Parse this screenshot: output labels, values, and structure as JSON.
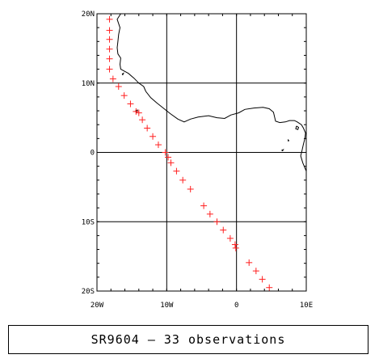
{
  "map": {
    "extent": {
      "lon": [
        -20,
        10
      ],
      "lat": [
        -20,
        20
      ]
    },
    "grid_interval_deg": 10,
    "lat_labels": [
      {
        "text": "20N",
        "lat": 20
      },
      {
        "text": "10N",
        "lat": 10
      },
      {
        "text": "0",
        "lat": 0
      },
      {
        "text": "10S",
        "lat": -10
      },
      {
        "text": "20S",
        "lat": -20
      }
    ],
    "lon_labels": [
      {
        "text": "20W",
        "lon": -20
      },
      {
        "text": "10W",
        "lon": -10
      },
      {
        "text": "0",
        "lon": 0
      },
      {
        "text": "10E",
        "lon": 10
      }
    ],
    "marker": "+",
    "marker_color": "#ff2020",
    "coastline_color": "#000000",
    "observations": [
      {
        "lon": -18.2,
        "lat": 19.2
      },
      {
        "lon": -18.2,
        "lat": 17.6
      },
      {
        "lon": -18.2,
        "lat": 16.3
      },
      {
        "lon": -18.2,
        "lat": 14.9
      },
      {
        "lon": -18.2,
        "lat": 13.5
      },
      {
        "lon": -18.2,
        "lat": 12.0
      },
      {
        "lon": -17.7,
        "lat": 10.6
      },
      {
        "lon": -16.9,
        "lat": 9.5
      },
      {
        "lon": -16.1,
        "lat": 8.2
      },
      {
        "lon": -15.2,
        "lat": 7.0
      },
      {
        "lon": -14.4,
        "lat": 5.9
      },
      {
        "lon": -14.0,
        "lat": 5.7
      },
      {
        "lon": -13.5,
        "lat": 4.7
      },
      {
        "lon": -12.8,
        "lat": 3.5
      },
      {
        "lon": -12.0,
        "lat": 2.3
      },
      {
        "lon": -11.2,
        "lat": 1.1
      },
      {
        "lon": -10.2,
        "lat": 0.0
      },
      {
        "lon": -9.8,
        "lat": -0.7
      },
      {
        "lon": -9.4,
        "lat": -1.5
      },
      {
        "lon": -8.6,
        "lat": -2.7
      },
      {
        "lon": -7.7,
        "lat": -4.0
      },
      {
        "lon": -6.6,
        "lat": -5.3
      },
      {
        "lon": -4.7,
        "lat": -7.7
      },
      {
        "lon": -3.8,
        "lat": -8.9
      },
      {
        "lon": -2.8,
        "lat": -10.0
      },
      {
        "lon": -1.9,
        "lat": -11.2
      },
      {
        "lon": -0.9,
        "lat": -12.4
      },
      {
        "lon": -0.2,
        "lat": -13.3
      },
      {
        "lon": -0.1,
        "lat": -13.8
      },
      {
        "lon": 1.8,
        "lat": -15.9
      },
      {
        "lon": 2.8,
        "lat": -17.1
      },
      {
        "lon": 3.7,
        "lat": -18.3
      },
      {
        "lon": 4.7,
        "lat": -19.5
      }
    ],
    "coastline": [
      [
        -16.6,
        20.0
      ],
      [
        -17.1,
        19.2
      ],
      [
        -16.7,
        18.0
      ],
      [
        -16.9,
        17.0
      ],
      [
        -17.0,
        16.0
      ],
      [
        -17.1,
        15.1
      ],
      [
        -17.0,
        14.2
      ],
      [
        -16.6,
        13.6
      ],
      [
        -16.7,
        12.7
      ],
      [
        -16.6,
        12.0
      ],
      [
        -15.5,
        11.4
      ],
      [
        -14.7,
        10.7
      ],
      [
        -14.0,
        10.0
      ],
      [
        -13.3,
        9.5
      ],
      [
        -13.0,
        8.8
      ],
      [
        -12.3,
        7.9
      ],
      [
        -11.5,
        7.2
      ],
      [
        -10.5,
        6.4
      ],
      [
        -9.5,
        5.6
      ],
      [
        -8.4,
        4.8
      ],
      [
        -7.5,
        4.4
      ],
      [
        -6.6,
        4.8
      ],
      [
        -5.5,
        5.1
      ],
      [
        -4.0,
        5.3
      ],
      [
        -2.8,
        5.0
      ],
      [
        -1.7,
        4.9
      ],
      [
        -0.8,
        5.4
      ],
      [
        0.3,
        5.7
      ],
      [
        1.2,
        6.2
      ],
      [
        2.5,
        6.4
      ],
      [
        3.8,
        6.5
      ],
      [
        4.7,
        6.3
      ],
      [
        5.3,
        5.8
      ],
      [
        5.6,
        4.5
      ],
      [
        6.2,
        4.3
      ],
      [
        7.0,
        4.4
      ],
      [
        7.6,
        4.6
      ],
      [
        8.3,
        4.6
      ],
      [
        8.7,
        4.4
      ],
      [
        9.3,
        4.0
      ],
      [
        9.6,
        3.5
      ],
      [
        9.9,
        2.8
      ],
      [
        9.8,
        2.0
      ],
      [
        9.6,
        1.2
      ],
      [
        9.4,
        0.3
      ],
      [
        9.2,
        -0.5
      ],
      [
        9.5,
        -1.5
      ],
      [
        10.0,
        -2.7
      ]
    ],
    "islands": [
      [
        [
          8.6,
          3.8
        ],
        [
          8.9,
          3.6
        ],
        [
          8.8,
          3.3
        ],
        [
          8.5,
          3.4
        ],
        [
          8.6,
          3.8
        ]
      ],
      [
        [
          6.6,
          0.2
        ],
        [
          6.7,
          0.4
        ],
        [
          6.5,
          0.3
        ],
        [
          6.6,
          0.2
        ]
      ],
      [
        [
          7.4,
          1.6
        ],
        [
          7.5,
          1.7
        ],
        [
          7.4,
          1.8
        ],
        [
          7.4,
          1.6
        ]
      ],
      [
        [
          -16.4,
          11.3
        ],
        [
          -16.2,
          11.4
        ],
        [
          -16.3,
          11.2
        ],
        [
          -16.4,
          11.3
        ]
      ],
      [
        [
          -14.5,
          6.0
        ],
        [
          -14.2,
          6.1
        ],
        [
          -14.3,
          5.8
        ],
        [
          -14.5,
          6.0
        ]
      ]
    ]
  },
  "caption": {
    "cruise": "SR9604",
    "separator": "—",
    "count_text": "33 observations",
    "full": "SR9604 — 33 observations"
  }
}
